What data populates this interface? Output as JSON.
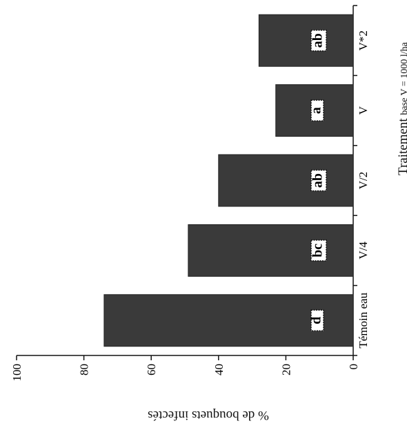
{
  "chart_data": {
    "type": "bar",
    "orientation": "vertical (figure printed rotated 90°)",
    "categories": [
      "Témoin eau",
      "V/4",
      "V/2",
      "V",
      "V*2"
    ],
    "values": [
      74,
      49,
      40,
      23,
      28
    ],
    "significance_letters": [
      "d",
      "bc",
      "ab",
      "a",
      "ab"
    ],
    "ylabel": "% de bouquets infectés",
    "xlabel_main": "Traitement",
    "xlabel_sub": "base V = 1000 l/ha",
    "ylim": [
      0,
      100
    ],
    "yticks": [
      "0",
      "20",
      "40",
      "60",
      "80",
      "100"
    ],
    "grid": false,
    "bar_color": "#3a3a3a"
  }
}
